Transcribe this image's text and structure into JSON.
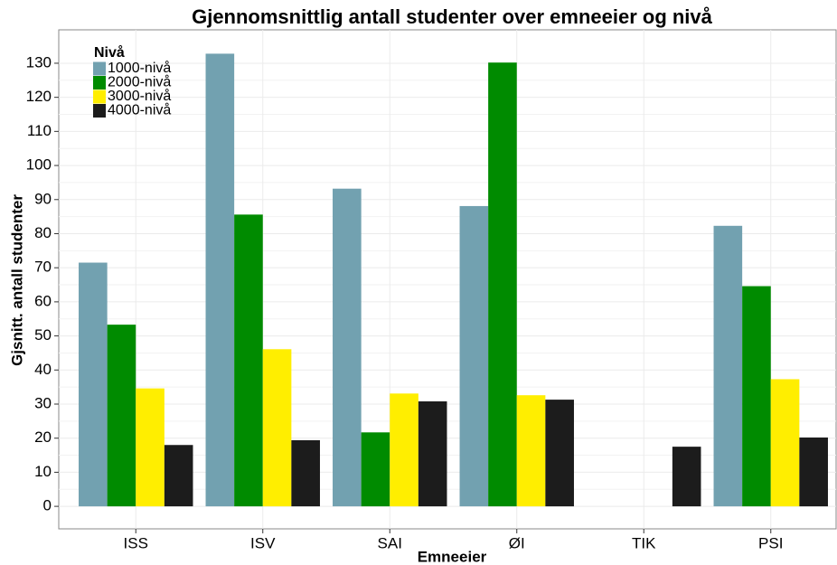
{
  "chart_data": {
    "type": "bar",
    "title": "Gjennomsnittlig antall studenter over emneeier og nivå",
    "x_label": "Emneeier",
    "y_label": "Gjsnitt. antall studenter",
    "legend_title": "Nivå",
    "categories": [
      "ISS",
      "ISV",
      "SAI",
      "ØI",
      "TIK",
      "PSI"
    ],
    "series": [
      {
        "name": "1000-nivå",
        "color": "#72a1b0",
        "values": [
          71.5,
          132.8,
          93.2,
          88.1,
          null,
          82.3
        ]
      },
      {
        "name": "2000-nivå",
        "color": "#008b00",
        "values": [
          53.3,
          85.6,
          21.7,
          130.2,
          null,
          64.6
        ]
      },
      {
        "name": "3000-nivå",
        "color": "#ffee00",
        "values": [
          34.6,
          46.1,
          33.1,
          32.6,
          null,
          37.3
        ]
      },
      {
        "name": "4000-nivå",
        "color": "#1c1c1c",
        "values": [
          18.0,
          19.4,
          30.8,
          31.3,
          17.5,
          20.2
        ]
      }
    ],
    "ylim": [
      -6.6,
      139.8
    ],
    "yticks": [
      0,
      10,
      20,
      30,
      40,
      50,
      60,
      70,
      80,
      90,
      100,
      110,
      120,
      130
    ],
    "grid": true,
    "legend_position": "top-left"
  }
}
